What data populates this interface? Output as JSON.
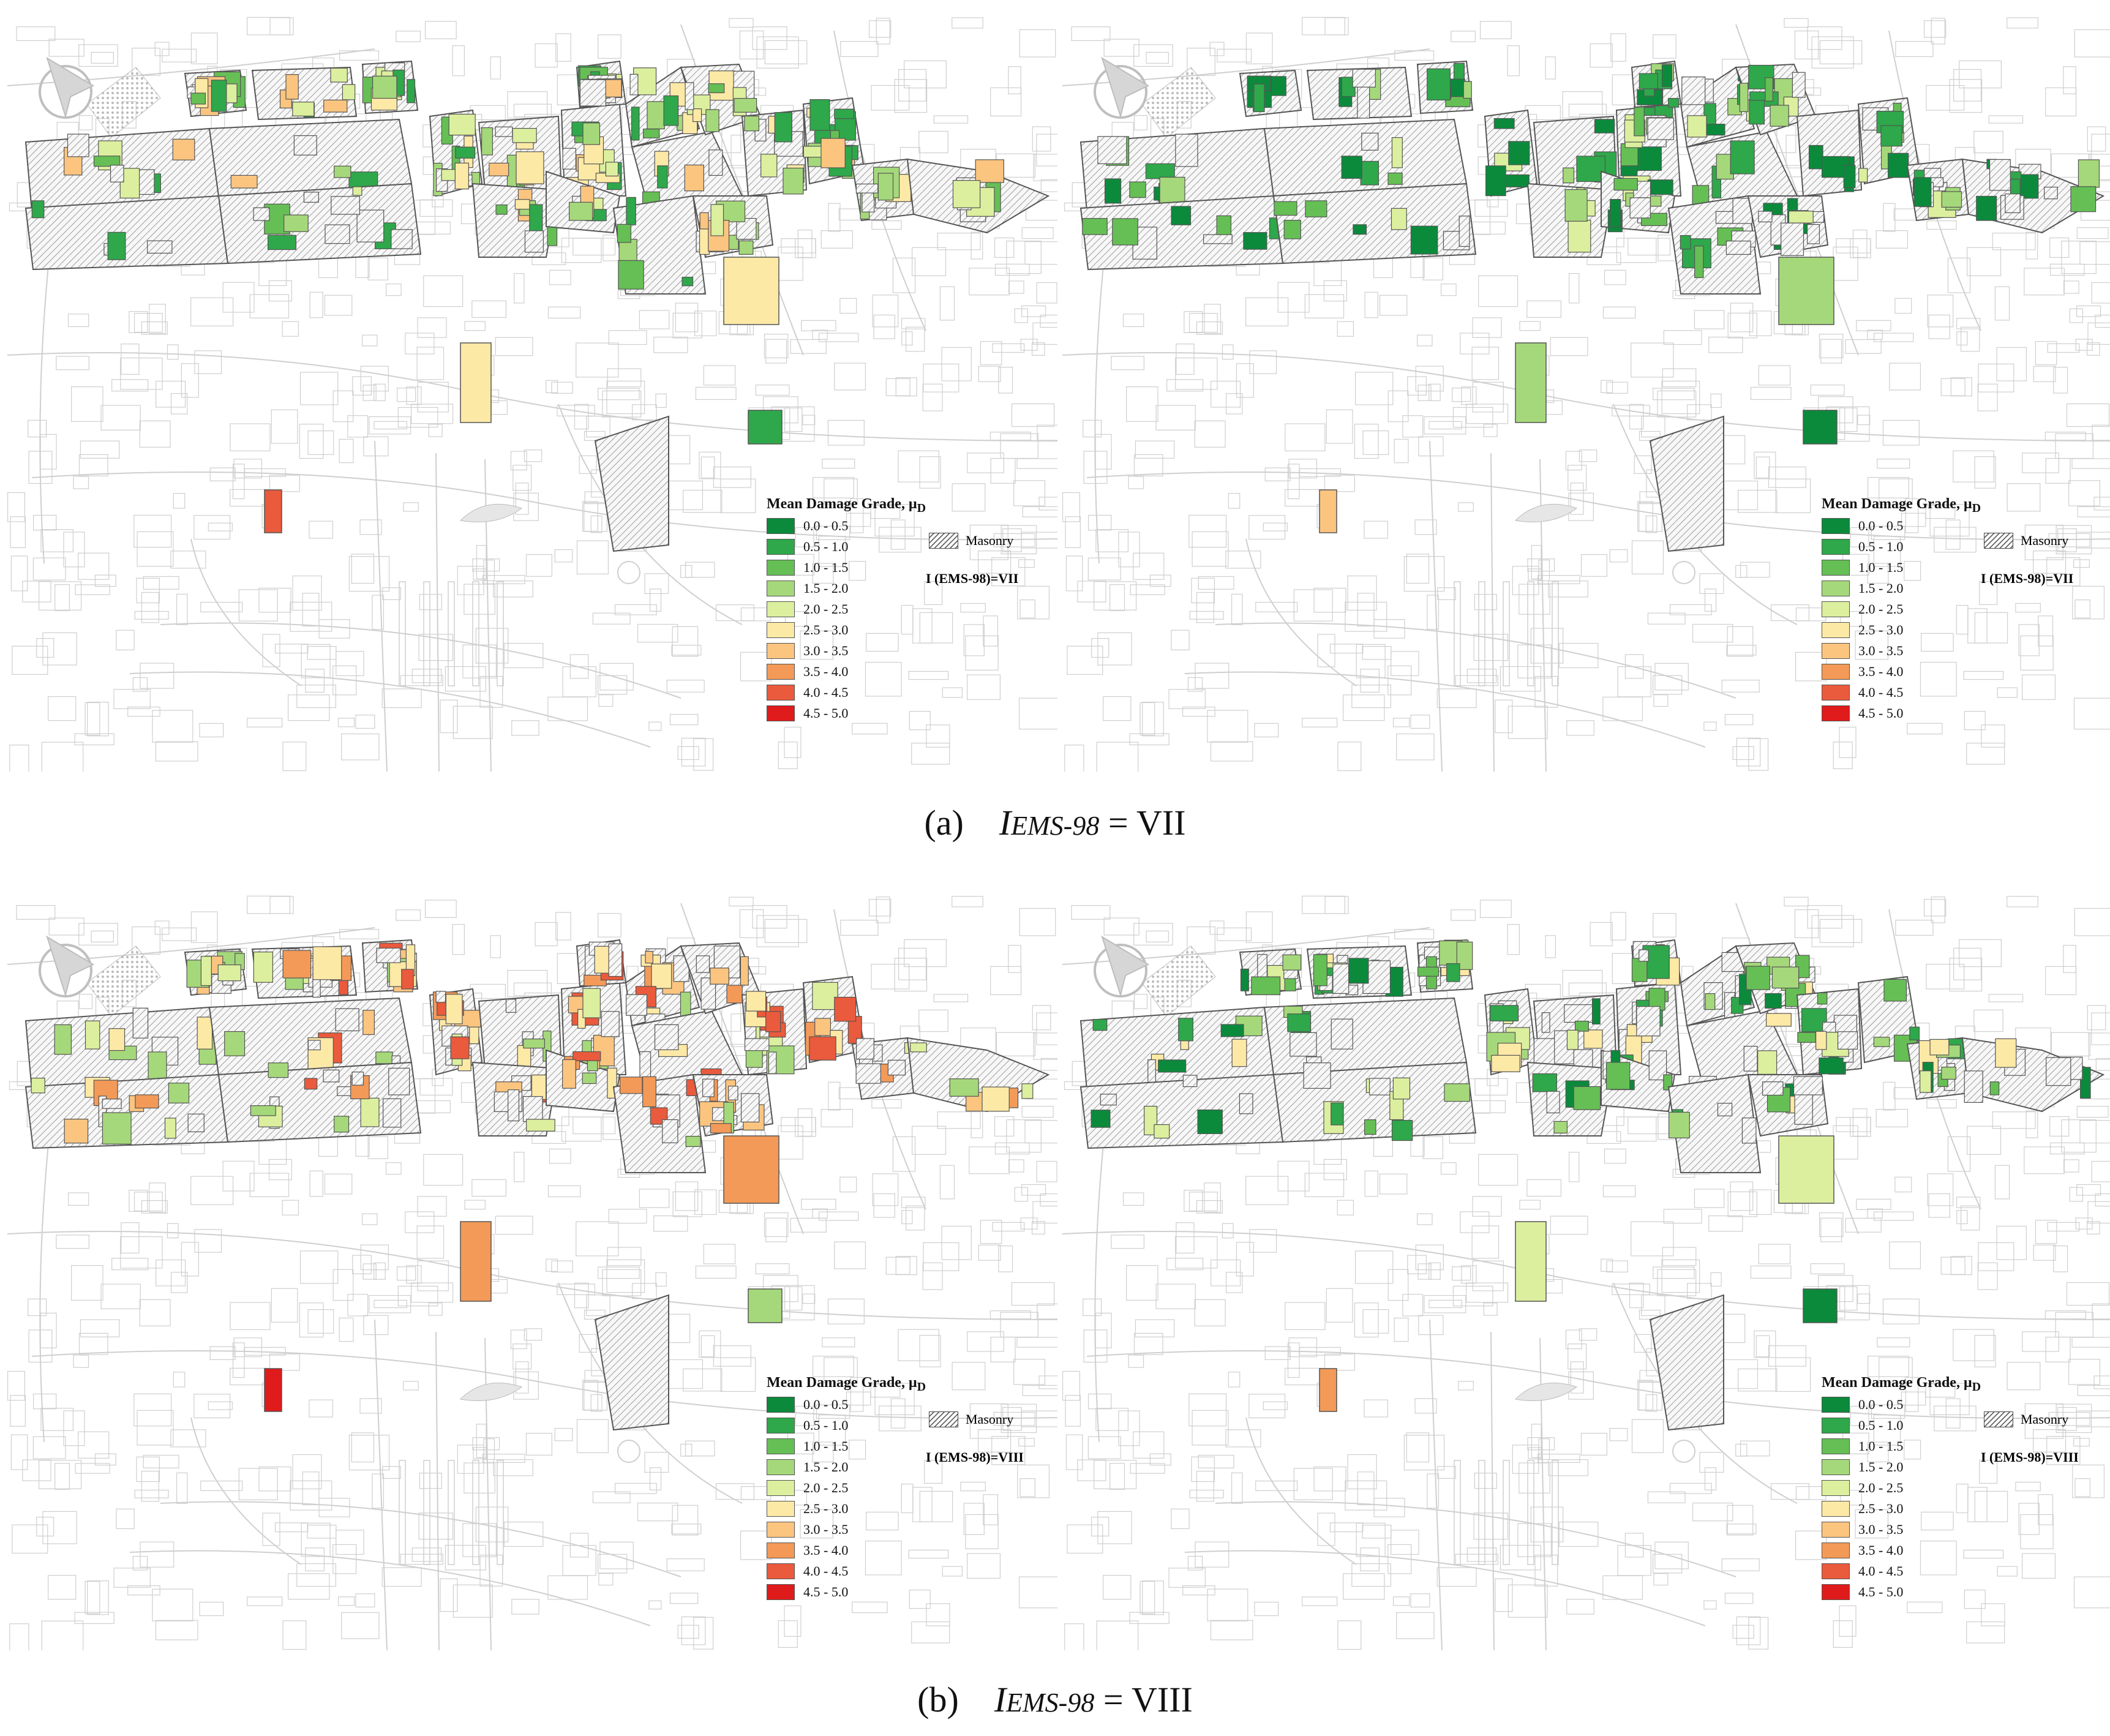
{
  "legend": {
    "title": "Mean Damage Grade, μ",
    "title_sub": "D",
    "classes": [
      {
        "label": "0.0 - 0.5",
        "color": "#0b8a3c"
      },
      {
        "label": "0.5 - 1.0",
        "color": "#2ea84a"
      },
      {
        "label": "1.0 - 1.5",
        "color": "#66bf55"
      },
      {
        "label": "1.5 - 2.0",
        "color": "#a5d87a"
      },
      {
        "label": "2.0 - 2.5",
        "color": "#dcef9e"
      },
      {
        "label": "2.5 - 3.0",
        "color": "#fde9a6"
      },
      {
        "label": "3.0 - 3.5",
        "color": "#fbc580"
      },
      {
        "label": "3.5 - 4.0",
        "color": "#f39a58"
      },
      {
        "label": "4.0 - 4.5",
        "color": "#ea5a3c"
      },
      {
        "label": "4.5 - 5.0",
        "color": "#e01b1b"
      }
    ],
    "masonry_label": "Masonry"
  },
  "panels": [
    {
      "id": "a-left",
      "intensity_label": "I (EMS-98)=VII",
      "palette_shift": 0
    },
    {
      "id": "a-right",
      "intensity_label": "I (EMS-98)=VII",
      "palette_shift": -2
    },
    {
      "id": "b-left",
      "intensity_label": "I (EMS-98)=VIII",
      "palette_shift": 2
    },
    {
      "id": "b-right",
      "intensity_label": "I (EMS-98)=VIII",
      "palette_shift": -1
    }
  ],
  "captions": [
    {
      "prefix": "(a)",
      "i": "I",
      "sub": "EMS-98",
      "eq": "= VII"
    },
    {
      "prefix": "(b)",
      "i": "I",
      "sub": "EMS-98",
      "eq": "= VIII"
    }
  ]
}
